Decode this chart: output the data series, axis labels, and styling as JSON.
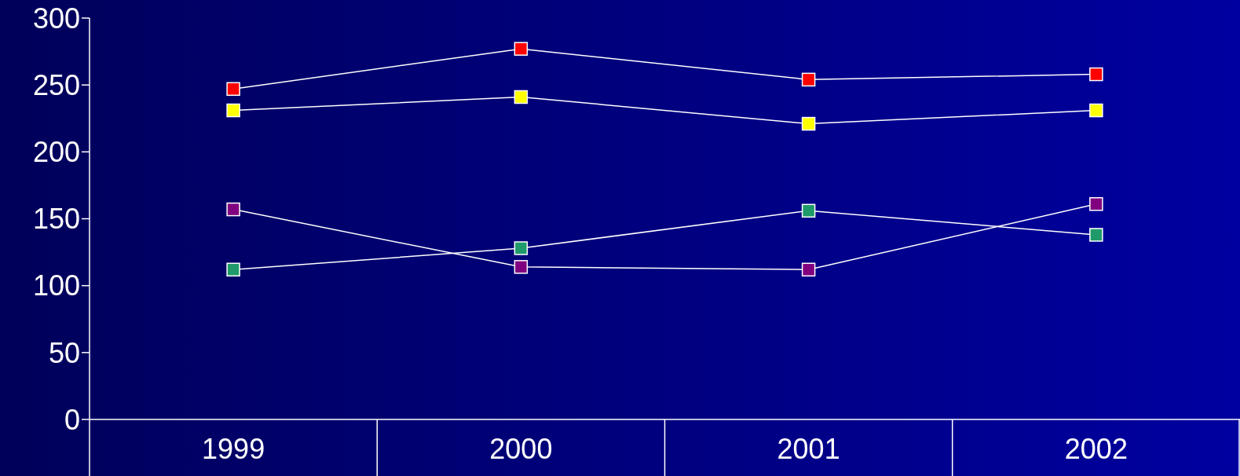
{
  "chart_data": {
    "type": "line",
    "categories": [
      "1999",
      "2000",
      "2001",
      "2002"
    ],
    "series": [
      {
        "color": "#ff0000",
        "values": [
          247,
          277,
          254,
          258
        ]
      },
      {
        "color": "#ffff00",
        "values": [
          231,
          241,
          221,
          231
        ]
      },
      {
        "color": "#800080",
        "values": [
          157,
          114,
          112,
          161
        ]
      },
      {
        "color": "#1f9a6a",
        "values": [
          112,
          128,
          156,
          138
        ]
      }
    ],
    "ylim": [
      0,
      300
    ],
    "yticks": [
      0,
      50,
      100,
      150,
      200,
      250,
      300
    ],
    "grid": false,
    "marker": "square",
    "line_style": "solid"
  }
}
